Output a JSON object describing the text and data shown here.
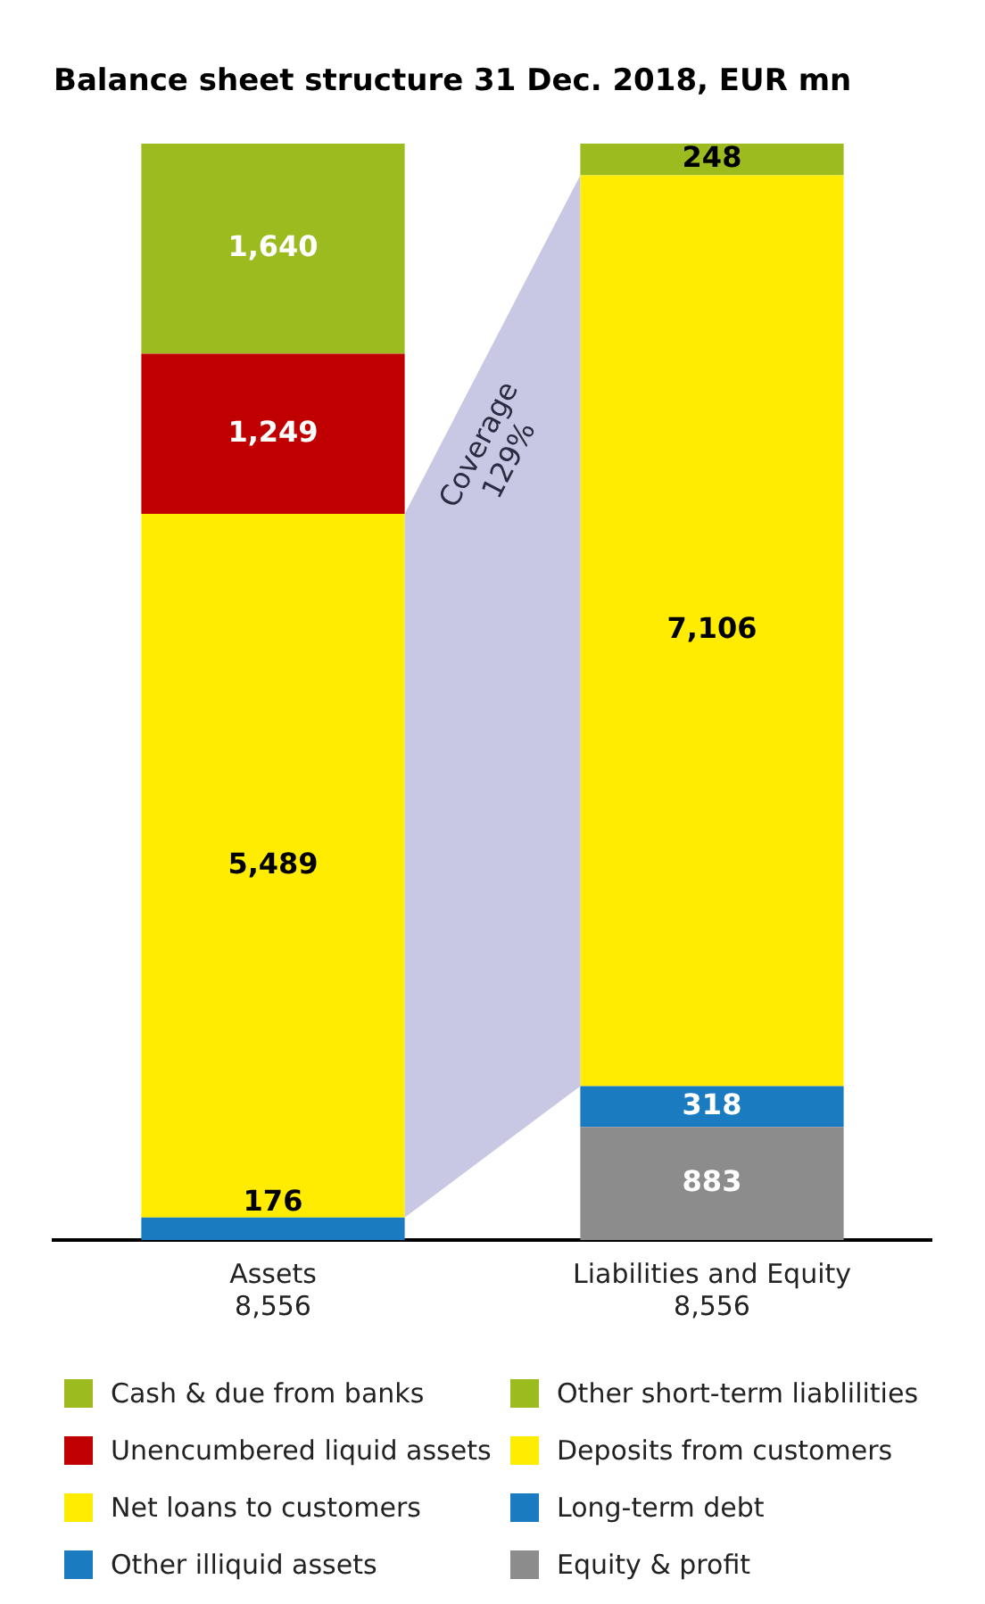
{
  "chart_data": {
    "type": "bar",
    "title": "Balance sheet structure 31 Dec. 2018, EUR mn",
    "stacked": true,
    "legend": "bottom",
    "grid": false,
    "categories": [
      "Assets\n8,556",
      "Liabilities and Equity\n8,556"
    ],
    "series": [
      {
        "name": "Other illiquid assets",
        "color": "#1a7bc0",
        "values": [
          176,
          null
        ],
        "value_labels": [
          "176",
          null
        ]
      },
      {
        "name": "Net loans to customers",
        "color": "#ffec00",
        "values": [
          5489,
          null
        ],
        "value_labels": [
          "5,489",
          null
        ]
      },
      {
        "name": "Unencumbered liquid assets",
        "color": "#c00000",
        "values": [
          1249,
          null
        ],
        "value_labels": [
          "1,249",
          null
        ]
      },
      {
        "name": "Cash & due from banks",
        "color": "#9bbb1f",
        "values": [
          1640,
          null
        ],
        "value_labels": [
          "1,640",
          null
        ]
      },
      {
        "name": "Equity & profit",
        "color": "#8c8c8c",
        "values": [
          null,
          883
        ],
        "value_labels": [
          null,
          "883"
        ]
      },
      {
        "name": "Long-term debt",
        "color": "#1a7bc0",
        "values": [
          null,
          318
        ],
        "value_labels": [
          null,
          "318"
        ]
      },
      {
        "name": "Deposits from customers",
        "color": "#ffec00",
        "values": [
          null,
          7106
        ],
        "value_labels": [
          null,
          "7,106"
        ]
      },
      {
        "name": "Other short-term liablilities",
        "color": "#9bbb1f",
        "values": [
          null,
          248
        ],
        "value_labels": [
          null,
          "248"
        ]
      }
    ],
    "annotations": [
      "Coverage\n129%"
    ]
  }
}
